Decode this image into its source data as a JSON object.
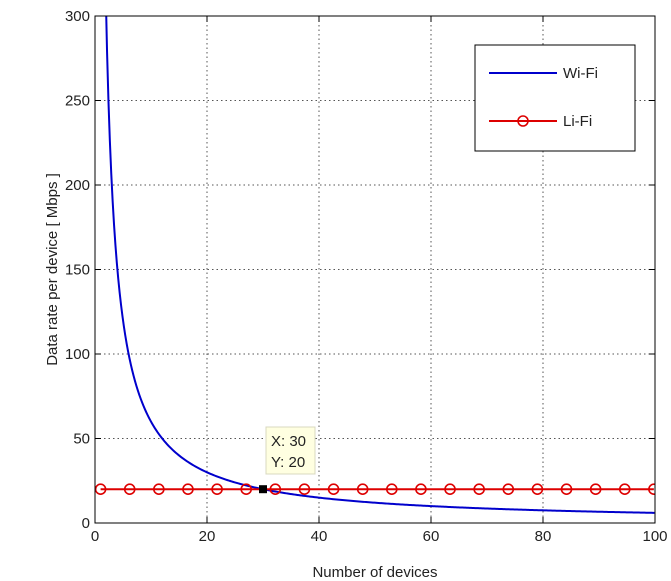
{
  "chart_data": {
    "type": "line",
    "title": "",
    "xlabel": "Number of devices",
    "ylabel": "Data rate per device [ Mbps ]",
    "xlim": [
      0,
      100
    ],
    "ylim": [
      0,
      300
    ],
    "xticks": [
      0,
      20,
      40,
      60,
      80,
      100
    ],
    "yticks": [
      0,
      50,
      100,
      150,
      200,
      250,
      300
    ],
    "grid": true,
    "legend_position": "top-right",
    "series": [
      {
        "name": "Wi-Fi",
        "color": "#0000cc",
        "marker": "none",
        "formula": "600 / x",
        "x": [
          2,
          3,
          4,
          5,
          6,
          8,
          10,
          12,
          15,
          20,
          25,
          30,
          40,
          50,
          60,
          70,
          80,
          90,
          100
        ],
        "y": [
          300,
          200,
          150,
          120,
          100,
          75,
          60,
          50,
          40,
          30,
          24,
          20,
          15,
          12,
          10,
          8.6,
          7.5,
          6.7,
          6
        ]
      },
      {
        "name": "Li-Fi",
        "color": "#dd0000",
        "marker": "circle",
        "x": [
          1,
          6.2,
          11.4,
          16.6,
          21.8,
          27,
          32.2,
          37.4,
          42.6,
          47.8,
          53,
          58.2,
          63.4,
          68.6,
          73.8,
          79,
          84.2,
          89.4,
          94.6,
          99.8
        ],
        "y": [
          20,
          20,
          20,
          20,
          20,
          20,
          20,
          20,
          20,
          20,
          20,
          20,
          20,
          20,
          20,
          20,
          20,
          20,
          20,
          20
        ]
      }
    ],
    "datatip": {
      "x": 30,
      "y": 20,
      "line_x": "X: 30",
      "line_y": "Y: 20"
    }
  }
}
